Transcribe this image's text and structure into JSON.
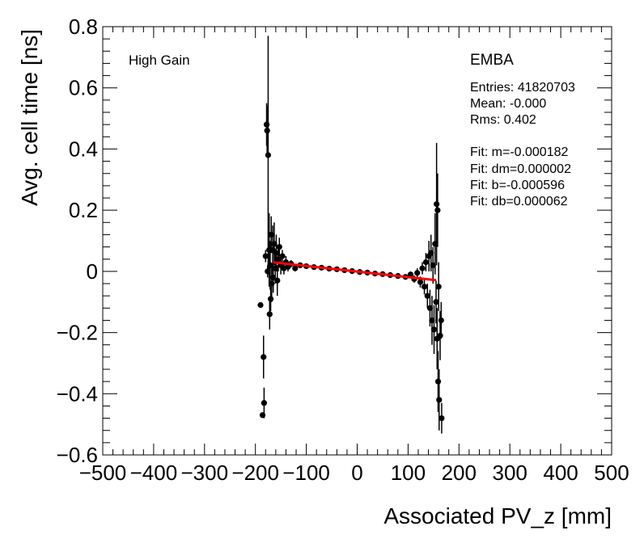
{
  "chart_data": {
    "type": "scatter",
    "xlabel": "Associated PV_z [mm]",
    "ylabel": "Avg. cell time [ns]",
    "xlim": [
      -500,
      500
    ],
    "ylim": [
      -0.6,
      0.8
    ],
    "x_ticks": [
      -500,
      -400,
      -300,
      -200,
      -100,
      0,
      100,
      200,
      300,
      400,
      500
    ],
    "x_tick_labels": [
      "−500",
      "−400",
      "−300",
      "−200",
      "−100",
      "0",
      "100",
      "200",
      "300",
      "400",
      "500"
    ],
    "y_ticks": [
      -0.6,
      -0.4,
      -0.2,
      0,
      0.2,
      0.4,
      0.6,
      0.8
    ],
    "y_tick_labels": [
      "−0.6",
      "−0.4",
      "−0.2",
      "0",
      "0.2",
      "0.4",
      "0.6",
      "0.8"
    ],
    "grid": false,
    "colors": {
      "points": "#000000",
      "fit_line": "#ff0000"
    },
    "annotations": {
      "gain": "High Gain",
      "partition": "EMBA",
      "stats": [
        "Entries: 41820703",
        "Mean: -0.000",
        "Rms: 0.402"
      ],
      "fit": [
        "Fit: m=-0.000182",
        "Fit: dm=0.000002",
        "Fit: b=-0.000596",
        "Fit: db=0.000062"
      ]
    },
    "fit_line": {
      "x": [
        -165,
        155
      ],
      "y": [
        0.0295,
        -0.0288
      ]
    },
    "points": [
      {
        "x": -190,
        "y": -0.11,
        "err": 0.0
      },
      {
        "x": -186,
        "y": -0.47,
        "err": 0.0
      },
      {
        "x": -184,
        "y": -0.28,
        "err": 0.07
      },
      {
        "x": -183,
        "y": -0.43,
        "err": 0.05
      },
      {
        "x": -180,
        "y": 0.05,
        "err": 0.02
      },
      {
        "x": -178,
        "y": 0.48,
        "err": 0.07
      },
      {
        "x": -177,
        "y": 0.46,
        "err": 0.08
      },
      {
        "x": -176,
        "y": 0.0,
        "err": 0.02
      },
      {
        "x": -175,
        "y": 0.38,
        "err": 0.39
      },
      {
        "x": -173,
        "y": 0.07,
        "err": 0.12
      },
      {
        "x": -172,
        "y": -0.14,
        "err": 0.05
      },
      {
        "x": -171,
        "y": 0.02,
        "err": 0.08
      },
      {
        "x": -170,
        "y": -0.09,
        "err": 0.04
      },
      {
        "x": -169,
        "y": 0.12,
        "err": 0.06
      },
      {
        "x": -168,
        "y": -0.04,
        "err": 0.06
      },
      {
        "x": -166,
        "y": 0.07,
        "err": 0.08
      },
      {
        "x": -165,
        "y": -0.02,
        "err": 0.05
      },
      {
        "x": -163,
        "y": 0.09,
        "err": 0.07
      },
      {
        "x": -161,
        "y": 0.01,
        "err": 0.05
      },
      {
        "x": -159,
        "y": 0.06,
        "err": 0.06
      },
      {
        "x": -157,
        "y": -0.03,
        "err": 0.05
      },
      {
        "x": -155,
        "y": 0.04,
        "err": 0.04
      },
      {
        "x": -153,
        "y": 0.08,
        "err": 0.03
      },
      {
        "x": -150,
        "y": 0.02,
        "err": 0.03
      },
      {
        "x": -147,
        "y": 0.05,
        "err": 0.02
      },
      {
        "x": -144,
        "y": 0.01,
        "err": 0.02
      },
      {
        "x": -140,
        "y": 0.03,
        "err": 0.02
      },
      {
        "x": -136,
        "y": 0.015,
        "err": 0.015
      },
      {
        "x": -130,
        "y": 0.025,
        "err": 0.012
      },
      {
        "x": -122,
        "y": 0.01,
        "err": 0.01
      },
      {
        "x": -112,
        "y": 0.02,
        "err": 0.008
      },
      {
        "x": -100,
        "y": 0.017,
        "err": 0.006
      },
      {
        "x": -85,
        "y": 0.014,
        "err": 0.005
      },
      {
        "x": -70,
        "y": 0.012,
        "err": 0.004
      },
      {
        "x": -55,
        "y": 0.009,
        "err": 0.004
      },
      {
        "x": -40,
        "y": 0.007,
        "err": 0.003
      },
      {
        "x": -25,
        "y": 0.004,
        "err": 0.003
      },
      {
        "x": -10,
        "y": 0.001,
        "err": 0.003
      },
      {
        "x": 5,
        "y": -0.002,
        "err": 0.003
      },
      {
        "x": 20,
        "y": -0.004,
        "err": 0.003
      },
      {
        "x": 35,
        "y": -0.007,
        "err": 0.004
      },
      {
        "x": 50,
        "y": -0.009,
        "err": 0.004
      },
      {
        "x": 65,
        "y": -0.012,
        "err": 0.005
      },
      {
        "x": 80,
        "y": -0.015,
        "err": 0.006
      },
      {
        "x": 95,
        "y": -0.018,
        "err": 0.007
      },
      {
        "x": 105,
        "y": -0.01,
        "err": 0.009
      },
      {
        "x": 112,
        "y": -0.025,
        "err": 0.012
      },
      {
        "x": 118,
        "y": -0.005,
        "err": 0.015
      },
      {
        "x": 124,
        "y": -0.035,
        "err": 0.018
      },
      {
        "x": 128,
        "y": 0.01,
        "err": 0.02
      },
      {
        "x": 132,
        "y": -0.05,
        "err": 0.025
      },
      {
        "x": 135,
        "y": 0.03,
        "err": 0.03
      },
      {
        "x": 138,
        "y": -0.08,
        "err": 0.04
      },
      {
        "x": 141,
        "y": 0.05,
        "err": 0.05
      },
      {
        "x": 143,
        "y": -0.12,
        "err": 0.06
      },
      {
        "x": 145,
        "y": 0.06,
        "err": 0.06
      },
      {
        "x": 147,
        "y": -0.16,
        "err": 0.08
      },
      {
        "x": 149,
        "y": 0.02,
        "err": 0.06
      },
      {
        "x": 151,
        "y": -0.19,
        "err": 0.08
      },
      {
        "x": 153,
        "y": 0.09,
        "err": 0.1
      },
      {
        "x": 155,
        "y": -0.1,
        "err": 0.07
      },
      {
        "x": 156,
        "y": 0.22,
        "err": 0.2
      },
      {
        "x": 157,
        "y": -0.22,
        "err": 0.1
      },
      {
        "x": 158,
        "y": 0.2,
        "err": 0.12
      },
      {
        "x": 159,
        "y": -0.36,
        "err": 0.1
      },
      {
        "x": 160,
        "y": -0.05,
        "err": 0.08
      },
      {
        "x": 161,
        "y": -0.42,
        "err": 0.1
      },
      {
        "x": 163,
        "y": -0.21,
        "err": 0.08
      },
      {
        "x": 165,
        "y": -0.16,
        "err": 0.06
      },
      {
        "x": 166,
        "y": -0.48,
        "err": 0.05
      }
    ]
  }
}
